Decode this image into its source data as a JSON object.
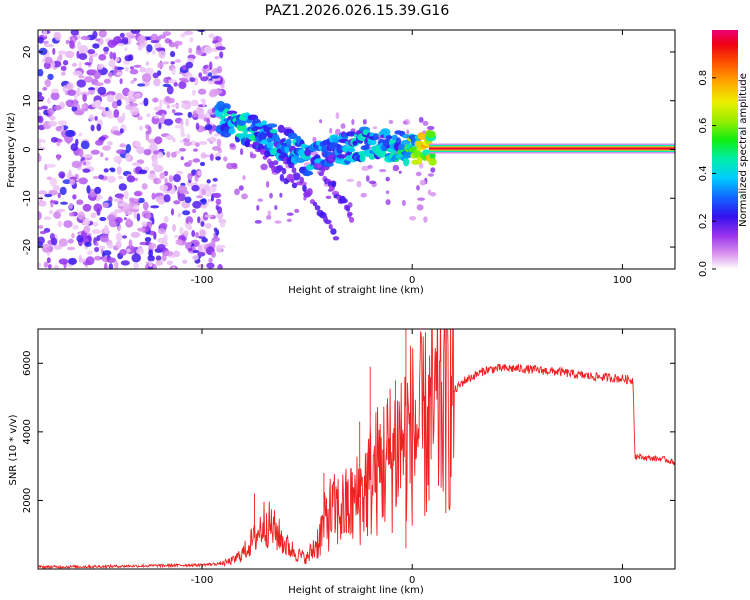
{
  "title": "PAZ1.2026.026.15.39.G16",
  "colors": {
    "snr_line": "#ee2222",
    "background": "#ffffff",
    "axis": "#000000"
  },
  "chart_data": [
    {
      "type": "heatmap",
      "name": "spectrogram",
      "xlabel": "Height of straight line (km)",
      "ylabel": "Frequency (Hz)",
      "xlim": [
        -178,
        125
      ],
      "ylim": [
        -24.5,
        24.5
      ],
      "xticks": [
        -100,
        0,
        100
      ],
      "xtick_labels": [
        "-100",
        "0",
        "100"
      ],
      "yticks": [
        -20,
        -10,
        0,
        10,
        20
      ],
      "ytick_labels": [
        "-20",
        "-10",
        "0",
        "10",
        "20"
      ],
      "colorbar": {
        "label": "Normalized spectral amplitude",
        "range": [
          0,
          1
        ],
        "ticks": [
          0.0,
          0.2,
          0.4,
          0.6,
          0.8
        ],
        "tick_labels": [
          "0.0",
          "0.2",
          "0.4",
          "0.6",
          "0.8"
        ]
      },
      "description_points": [
        {
          "x": -90,
          "y": 6.5,
          "v": 0.35
        },
        {
          "x": -80,
          "y": 4.5,
          "v": 0.4
        },
        {
          "x": -70,
          "y": 2.5,
          "v": 0.35
        },
        {
          "x": -60,
          "y": 1.0,
          "v": 0.35
        },
        {
          "x": -50,
          "y": -2.0,
          "v": 0.35
        },
        {
          "x": -40,
          "y": -1.0,
          "v": 0.3
        },
        {
          "x": -30,
          "y": 0.5,
          "v": 0.35
        },
        {
          "x": -20,
          "y": 1.5,
          "v": 0.35
        },
        {
          "x": -10,
          "y": 0.8,
          "v": 0.35
        },
        {
          "x": 0,
          "y": 0.2,
          "v": 0.5
        },
        {
          "x": 8,
          "y": 0.3,
          "v": 0.7
        },
        {
          "x": 20,
          "y": 0.0,
          "v": 0.95
        },
        {
          "x": 60,
          "y": 0.0,
          "v": 0.95
        },
        {
          "x": 100,
          "y": 0.0,
          "v": 0.95
        },
        {
          "x": 125,
          "y": 0.0,
          "v": 0.85
        }
      ]
    },
    {
      "type": "line",
      "name": "snr",
      "xlabel": "Height of straight line (km)",
      "ylabel": "SNR (10 * v/v)",
      "xlim": [
        -178,
        125
      ],
      "ylim": [
        0,
        7000
      ],
      "xticks": [
        -100,
        0,
        100
      ],
      "xtick_labels": [
        "-100",
        "0",
        "100"
      ],
      "yticks": [
        2000,
        4000,
        6000
      ],
      "ytick_labels": [
        "2000",
        "4000",
        "6000"
      ],
      "series": [
        {
          "name": "SNR",
          "x": [
            -178,
            -150,
            -120,
            -100,
            -90,
            -85,
            -80,
            -75,
            -70,
            -65,
            -60,
            -55,
            -50,
            -45,
            -40,
            -35,
            -30,
            -25,
            -20,
            -15,
            -10,
            -5,
            0,
            5,
            10,
            15,
            20,
            25,
            30,
            35,
            40,
            50,
            60,
            70,
            80,
            90,
            100,
            105,
            106,
            110,
            120,
            125
          ],
          "y": [
            60,
            70,
            100,
            120,
            160,
            250,
            500,
            900,
            1400,
            1100,
            700,
            450,
            300,
            800,
            1600,
            1700,
            1800,
            2100,
            2600,
            3000,
            3300,
            3800,
            4000,
            4100,
            4400,
            4800,
            5200,
            5500,
            5650,
            5800,
            5850,
            5850,
            5800,
            5750,
            5650,
            5600,
            5550,
            5500,
            3300,
            3250,
            3200,
            3100
          ]
        }
      ],
      "spikes": [
        {
          "x": -75,
          "y": 2200
        },
        {
          "x": -42,
          "y": 2800
        },
        {
          "x": -25,
          "y": 4300
        },
        {
          "x": -20,
          "y": 5900
        },
        {
          "x": -12,
          "y": 4800
        },
        {
          "x": -8,
          "y": 5500
        },
        {
          "x": -3,
          "y": 7000
        },
        {
          "x": -3,
          "y": 600
        }
      ]
    }
  ]
}
